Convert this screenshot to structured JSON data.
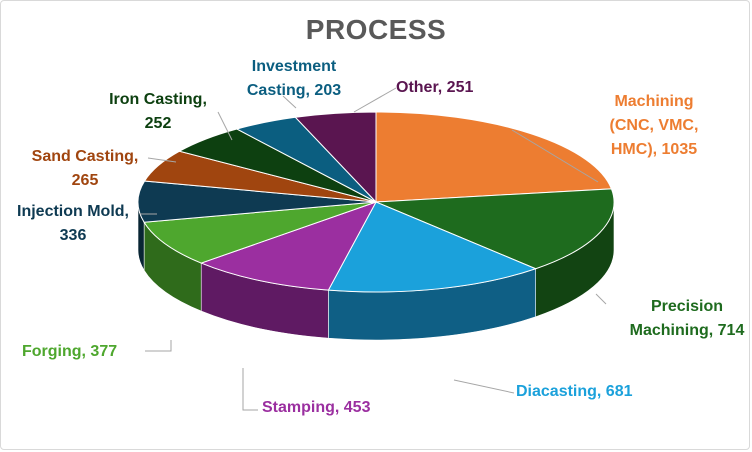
{
  "chart_data": {
    "type": "pie",
    "title": "PROCESS",
    "slices": [
      {
        "label": "Machining (CNC, VMC, HMC)",
        "value": 1035,
        "color": "#ed7d31",
        "dark": "#a4531c",
        "label_lines": [
          "Machining",
          "(CNC, VMC,",
          "HMC), 1035"
        ]
      },
      {
        "label": "Precision Machining",
        "value": 714,
        "color": "#1e6b1e",
        "dark": "#124412",
        "label_lines": [
          "Precision",
          "Machining, 714"
        ]
      },
      {
        "label": "Diacasting",
        "value": 681,
        "color": "#1ba1db",
        "dark": "#0f5f85",
        "label_lines": [
          "Diacasting, 681"
        ]
      },
      {
        "label": "Stamping",
        "value": 453,
        "color": "#9b2fa0",
        "dark": "#5f1a63",
        "label_lines": [
          "Stamping, 453"
        ]
      },
      {
        "label": "Forging",
        "value": 377,
        "color": "#4ea72e",
        "dark": "#2f6b1b",
        "label_lines": [
          "Forging, 377"
        ]
      },
      {
        "label": "Injection Mold",
        "value": 336,
        "color": "#0e3a52",
        "dark": "#082533",
        "label_lines": [
          "Injection Mold,",
          "336"
        ]
      },
      {
        "label": "Sand Casting",
        "value": 265,
        "color": "#a0450f",
        "dark": "#652a08",
        "label_lines": [
          "Sand Casting,",
          "265"
        ]
      },
      {
        "label": "Iron Casting",
        "value": 252,
        "color": "#0d4010",
        "dark": "#072709",
        "label_lines": [
          "Iron Casting,",
          "252"
        ]
      },
      {
        "label": "Investment Casting",
        "value": 203,
        "color": "#0b5e80",
        "dark": "#063a50",
        "label_lines": [
          "Investment",
          "Casting, 203"
        ]
      },
      {
        "label": "Other",
        "value": 251,
        "color": "#5a1550",
        "dark": "#3a0c33",
        "label_lines": [
          "Other, 251"
        ]
      }
    ],
    "label_colors": [
      "#ed7d31",
      "#1e6b1e",
      "#1ba1db",
      "#9b2fa0",
      "#4ea72e",
      "#0e3a52",
      "#a0450f",
      "#0d4010",
      "#0b5e80",
      "#5a1550"
    ],
    "legend": "none",
    "style": "3d-pie"
  }
}
